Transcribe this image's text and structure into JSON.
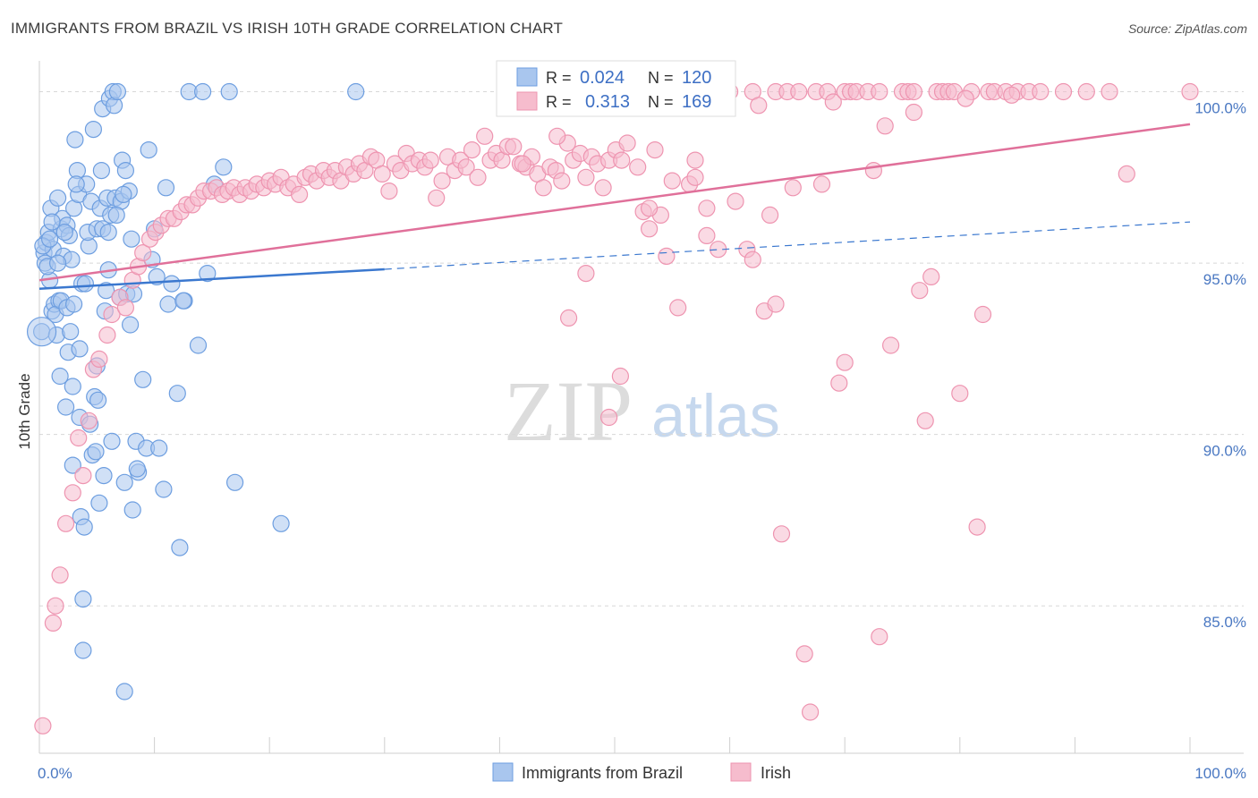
{
  "title": "IMMIGRANTS FROM BRAZIL VS IRISH 10TH GRADE CORRELATION CHART",
  "source": "Source: ZipAtlas.com",
  "watermark": {
    "zip": "ZIP",
    "atlas": "atlas"
  },
  "colors": {
    "brazil_fill": "#a9c6ee",
    "brazil_stroke": "#6d9ee0",
    "brazil_line": "#3b78cf",
    "irish_fill": "#f6bccd",
    "irish_stroke": "#ee94b0",
    "irish_line": "#e0709a",
    "axis_label": "#4a78c2",
    "grid": "#d8d8d8"
  },
  "legend_top": {
    "r_label": "R =",
    "n_label": "N =",
    "rows": [
      {
        "series": "brazil",
        "r": "0.024",
        "n": "120"
      },
      {
        "series": "irish",
        "r": "0.313",
        "n": "169"
      }
    ]
  },
  "legend_bottom": [
    {
      "series": "brazil",
      "label": "Immigrants from Brazil"
    },
    {
      "series": "irish",
      "label": "Irish"
    }
  ],
  "chart_data": {
    "type": "scatter",
    "title": "IMMIGRANTS FROM BRAZIL VS IRISH 10TH GRADE CORRELATION CHART",
    "xlabel": "",
    "ylabel": "10th Grade",
    "xlim": [
      0,
      100
    ],
    "ylim": [
      80.7,
      100.9
    ],
    "x_tick_labels": [
      "0.0%",
      "100.0%"
    ],
    "y_ticks": [
      85,
      90,
      95,
      100
    ],
    "y_tick_labels": [
      "85.0%",
      "90.0%",
      "95.0%",
      "100.0%"
    ],
    "grid": true,
    "legend_placement": "top-center and bottom-center",
    "series": [
      {
        "name": "Immigrants from Brazil",
        "key": "brazil",
        "r": 0.024,
        "n": 120,
        "trend": {
          "x": [
            0,
            30
          ],
          "y": [
            94.25,
            94.82
          ],
          "dashed_extension_to": [
            100,
            96.2
          ]
        },
        "points": [
          [
            0.2,
            93.0
          ],
          [
            0.4,
            95.3
          ],
          [
            0.5,
            95.0
          ],
          [
            0.6,
            95.6
          ],
          [
            0.8,
            95.9
          ],
          [
            0.9,
            94.5
          ],
          [
            1.0,
            96.6
          ],
          [
            1.1,
            93.6
          ],
          [
            1.2,
            95.4
          ],
          [
            1.3,
            93.8
          ],
          [
            1.5,
            92.9
          ],
          [
            1.6,
            96.9
          ],
          [
            1.7,
            93.9
          ],
          [
            1.8,
            91.7
          ],
          [
            1.9,
            96.0
          ],
          [
            2.0,
            96.3
          ],
          [
            2.1,
            95.2
          ],
          [
            2.3,
            90.8
          ],
          [
            2.4,
            96.1
          ],
          [
            2.5,
            92.4
          ],
          [
            2.6,
            95.8
          ],
          [
            2.8,
            95.1
          ],
          [
            2.9,
            89.1
          ],
          [
            3.0,
            96.6
          ],
          [
            3.1,
            98.6
          ],
          [
            3.3,
            97.7
          ],
          [
            3.4,
            97.0
          ],
          [
            3.5,
            90.5
          ],
          [
            3.6,
            87.6
          ],
          [
            3.7,
            94.4
          ],
          [
            3.8,
            85.2
          ],
          [
            3.9,
            87.3
          ],
          [
            4.1,
            97.3
          ],
          [
            4.3,
            95.5
          ],
          [
            4.4,
            90.3
          ],
          [
            4.5,
            96.8
          ],
          [
            4.6,
            89.4
          ],
          [
            4.7,
            98.9
          ],
          [
            4.8,
            91.1
          ],
          [
            5.0,
            92.0
          ],
          [
            5.2,
            88.0
          ],
          [
            5.3,
            96.6
          ],
          [
            5.4,
            97.7
          ],
          [
            5.5,
            99.5
          ],
          [
            5.6,
            88.8
          ],
          [
            5.8,
            94.2
          ],
          [
            5.9,
            96.9
          ],
          [
            6.0,
            94.8
          ],
          [
            6.1,
            99.8
          ],
          [
            6.2,
            96.4
          ],
          [
            6.4,
            100.0
          ],
          [
            6.5,
            99.6
          ],
          [
            6.6,
            96.9
          ],
          [
            6.8,
            100.0
          ],
          [
            7.0,
            94.0
          ],
          [
            7.1,
            96.8
          ],
          [
            7.2,
            98.0
          ],
          [
            7.4,
            88.6
          ],
          [
            7.5,
            97.7
          ],
          [
            7.6,
            94.1
          ],
          [
            7.8,
            97.1
          ],
          [
            8.0,
            95.7
          ],
          [
            8.2,
            94.1
          ],
          [
            8.4,
            89.8
          ],
          [
            8.6,
            88.9
          ],
          [
            9.0,
            91.6
          ],
          [
            9.3,
            89.6
          ],
          [
            9.8,
            95.1
          ],
          [
            10.0,
            96.0
          ],
          [
            10.4,
            89.6
          ],
          [
            10.8,
            88.4
          ],
          [
            11.2,
            93.8
          ],
          [
            11.5,
            94.4
          ],
          [
            12.0,
            91.2
          ],
          [
            12.2,
            86.7
          ],
          [
            12.6,
            93.9
          ],
          [
            13.0,
            100.0
          ],
          [
            13.8,
            92.6
          ],
          [
            14.2,
            100.0
          ],
          [
            14.6,
            94.7
          ],
          [
            15.2,
            97.3
          ],
          [
            16.0,
            97.8
          ],
          [
            16.5,
            100.0
          ],
          [
            17.0,
            88.6
          ],
          [
            21.0,
            87.4
          ],
          [
            27.5,
            100.0
          ],
          [
            0.3,
            95.5
          ],
          [
            0.7,
            94.9
          ],
          [
            1.4,
            93.5
          ],
          [
            2.2,
            95.9
          ],
          [
            2.7,
            93.0
          ],
          [
            3.2,
            97.3
          ],
          [
            4.0,
            94.4
          ],
          [
            4.9,
            89.5
          ],
          [
            5.1,
            91.0
          ],
          [
            5.7,
            93.6
          ],
          [
            6.3,
            89.8
          ],
          [
            6.7,
            96.4
          ],
          [
            7.3,
            97.0
          ],
          [
            7.9,
            93.2
          ],
          [
            8.1,
            87.8
          ],
          [
            8.5,
            89.0
          ],
          [
            9.5,
            98.3
          ],
          [
            10.2,
            94.6
          ],
          [
            1.9,
            93.9
          ],
          [
            2.4,
            93.7
          ],
          [
            3.0,
            93.8
          ],
          [
            3.5,
            92.5
          ],
          [
            4.2,
            95.9
          ],
          [
            5.0,
            96.0
          ],
          [
            5.5,
            96.0
          ],
          [
            6.0,
            95.9
          ],
          [
            1.1,
            96.2
          ],
          [
            1.6,
            95.0
          ],
          [
            0.9,
            95.7
          ],
          [
            2.9,
            91.4
          ],
          [
            3.8,
            83.7
          ],
          [
            7.4,
            82.5
          ],
          [
            12.5,
            93.9
          ],
          [
            11.0,
            97.2
          ]
        ]
      },
      {
        "name": "Irish",
        "key": "irish",
        "r": 0.313,
        "n": 169,
        "trend": {
          "x": [
            0,
            100
          ],
          "y": [
            94.5,
            99.05
          ]
        },
        "points": [
          [
            0.3,
            81.5
          ],
          [
            1.2,
            84.5
          ],
          [
            1.4,
            85.0
          ],
          [
            1.8,
            85.9
          ],
          [
            2.3,
            87.4
          ],
          [
            2.9,
            88.3
          ],
          [
            3.4,
            89.9
          ],
          [
            3.8,
            88.8
          ],
          [
            4.3,
            90.4
          ],
          [
            4.7,
            91.9
          ],
          [
            5.2,
            92.2
          ],
          [
            5.9,
            92.9
          ],
          [
            6.3,
            93.5
          ],
          [
            7.0,
            94.0
          ],
          [
            7.5,
            93.7
          ],
          [
            8.1,
            94.5
          ],
          [
            8.6,
            94.9
          ],
          [
            9.0,
            95.3
          ],
          [
            9.6,
            95.7
          ],
          [
            10.1,
            95.9
          ],
          [
            10.6,
            96.1
          ],
          [
            11.2,
            96.3
          ],
          [
            11.7,
            96.3
          ],
          [
            12.3,
            96.5
          ],
          [
            12.8,
            96.7
          ],
          [
            13.3,
            96.7
          ],
          [
            13.8,
            96.9
          ],
          [
            14.3,
            97.1
          ],
          [
            14.9,
            97.1
          ],
          [
            15.4,
            97.2
          ],
          [
            15.9,
            97.0
          ],
          [
            16.4,
            97.1
          ],
          [
            16.9,
            97.2
          ],
          [
            17.4,
            97.0
          ],
          [
            17.9,
            97.2
          ],
          [
            18.4,
            97.1
          ],
          [
            18.9,
            97.3
          ],
          [
            19.5,
            97.2
          ],
          [
            20.0,
            97.4
          ],
          [
            20.5,
            97.3
          ],
          [
            21.0,
            97.5
          ],
          [
            21.6,
            97.2
          ],
          [
            22.1,
            97.3
          ],
          [
            22.6,
            97.0
          ],
          [
            23.1,
            97.5
          ],
          [
            23.6,
            97.6
          ],
          [
            24.1,
            97.4
          ],
          [
            24.7,
            97.7
          ],
          [
            25.2,
            97.5
          ],
          [
            25.7,
            97.7
          ],
          [
            26.2,
            97.4
          ],
          [
            26.7,
            97.8
          ],
          [
            27.3,
            97.6
          ],
          [
            27.8,
            97.9
          ],
          [
            28.3,
            97.7
          ],
          [
            28.8,
            98.1
          ],
          [
            29.3,
            98.0
          ],
          [
            29.8,
            97.6
          ],
          [
            30.4,
            97.1
          ],
          [
            30.9,
            97.9
          ],
          [
            31.4,
            97.7
          ],
          [
            31.9,
            98.2
          ],
          [
            32.4,
            97.9
          ],
          [
            33.0,
            98.0
          ],
          [
            33.5,
            97.8
          ],
          [
            34.0,
            98.0
          ],
          [
            34.5,
            96.9
          ],
          [
            35.0,
            97.4
          ],
          [
            35.5,
            98.1
          ],
          [
            36.1,
            97.7
          ],
          [
            36.6,
            98.0
          ],
          [
            37.1,
            97.8
          ],
          [
            37.6,
            98.3
          ],
          [
            38.1,
            97.5
          ],
          [
            38.7,
            98.7
          ],
          [
            39.2,
            98.0
          ],
          [
            39.7,
            98.2
          ],
          [
            40.2,
            98.0
          ],
          [
            40.7,
            98.4
          ],
          [
            41.2,
            98.4
          ],
          [
            41.8,
            97.9
          ],
          [
            42.3,
            97.8
          ],
          [
            42.8,
            98.1
          ],
          [
            43.3,
            97.6
          ],
          [
            43.8,
            97.2
          ],
          [
            44.4,
            97.8
          ],
          [
            44.9,
            97.7
          ],
          [
            45.4,
            97.4
          ],
          [
            45.9,
            98.5
          ],
          [
            46.4,
            98.0
          ],
          [
            47.0,
            98.2
          ],
          [
            47.5,
            97.5
          ],
          [
            48.0,
            98.1
          ],
          [
            48.5,
            97.9
          ],
          [
            49.0,
            97.2
          ],
          [
            49.5,
            98.0
          ],
          [
            50.1,
            98.3
          ],
          [
            50.6,
            98.0
          ],
          [
            51.1,
            98.5
          ],
          [
            52.0,
            97.8
          ],
          [
            52.5,
            96.5
          ],
          [
            53.0,
            96.0
          ],
          [
            53.5,
            98.3
          ],
          [
            54.0,
            96.4
          ],
          [
            54.5,
            95.2
          ],
          [
            55.0,
            97.4
          ],
          [
            55.5,
            93.7
          ],
          [
            56.5,
            97.3
          ],
          [
            57.0,
            97.5
          ],
          [
            58.0,
            96.6
          ],
          [
            59.0,
            95.4
          ],
          [
            60.0,
            100.0
          ],
          [
            60.5,
            96.8
          ],
          [
            61.5,
            95.4
          ],
          [
            62.0,
            100.0
          ],
          [
            62.5,
            99.6
          ],
          [
            63.0,
            93.6
          ],
          [
            63.5,
            96.4
          ],
          [
            64.0,
            100.0
          ],
          [
            64.5,
            87.1
          ],
          [
            65.0,
            100.0
          ],
          [
            65.5,
            97.2
          ],
          [
            66.0,
            100.0
          ],
          [
            67.0,
            81.9
          ],
          [
            67.5,
            100.0
          ],
          [
            68.0,
            97.3
          ],
          [
            68.5,
            100.0
          ],
          [
            69.0,
            99.7
          ],
          [
            70.0,
            100.0
          ],
          [
            70.5,
            100.0
          ],
          [
            71.0,
            100.0
          ],
          [
            72.0,
            100.0
          ],
          [
            72.5,
            97.7
          ],
          [
            73.0,
            100.0
          ],
          [
            73.5,
            99.0
          ],
          [
            74.0,
            92.6
          ],
          [
            75.0,
            100.0
          ],
          [
            75.5,
            100.0
          ],
          [
            76.0,
            100.0
          ],
          [
            76.5,
            94.2
          ],
          [
            77.0,
            90.4
          ],
          [
            77.5,
            94.6
          ],
          [
            78.0,
            100.0
          ],
          [
            78.5,
            100.0
          ],
          [
            79.0,
            100.0
          ],
          [
            79.5,
            100.0
          ],
          [
            80.0,
            91.2
          ],
          [
            81.0,
            100.0
          ],
          [
            81.5,
            87.3
          ],
          [
            82.0,
            93.5
          ],
          [
            82.5,
            100.0
          ],
          [
            83.0,
            100.0
          ],
          [
            84.0,
            100.0
          ],
          [
            85.0,
            100.0
          ],
          [
            86.0,
            100.0
          ],
          [
            87.0,
            100.0
          ],
          [
            89.0,
            100.0
          ],
          [
            91.0,
            100.0
          ],
          [
            93.0,
            100.0
          ],
          [
            94.5,
            97.6
          ],
          [
            100.0,
            100.0
          ],
          [
            47.5,
            94.7
          ],
          [
            50.5,
            91.7
          ],
          [
            49.5,
            90.5
          ],
          [
            66.5,
            83.6
          ],
          [
            73.0,
            84.1
          ],
          [
            69.5,
            91.5
          ],
          [
            46.0,
            93.4
          ],
          [
            42.0,
            97.9
          ],
          [
            53.0,
            96.6
          ],
          [
            58.0,
            95.8
          ],
          [
            62.0,
            95.1
          ],
          [
            64.0,
            93.8
          ],
          [
            70.0,
            92.1
          ],
          [
            45.0,
            98.7
          ],
          [
            57.0,
            98.0
          ],
          [
            76.0,
            99.4
          ],
          [
            80.5,
            99.8
          ],
          [
            84.5,
            99.9
          ]
        ]
      }
    ]
  }
}
